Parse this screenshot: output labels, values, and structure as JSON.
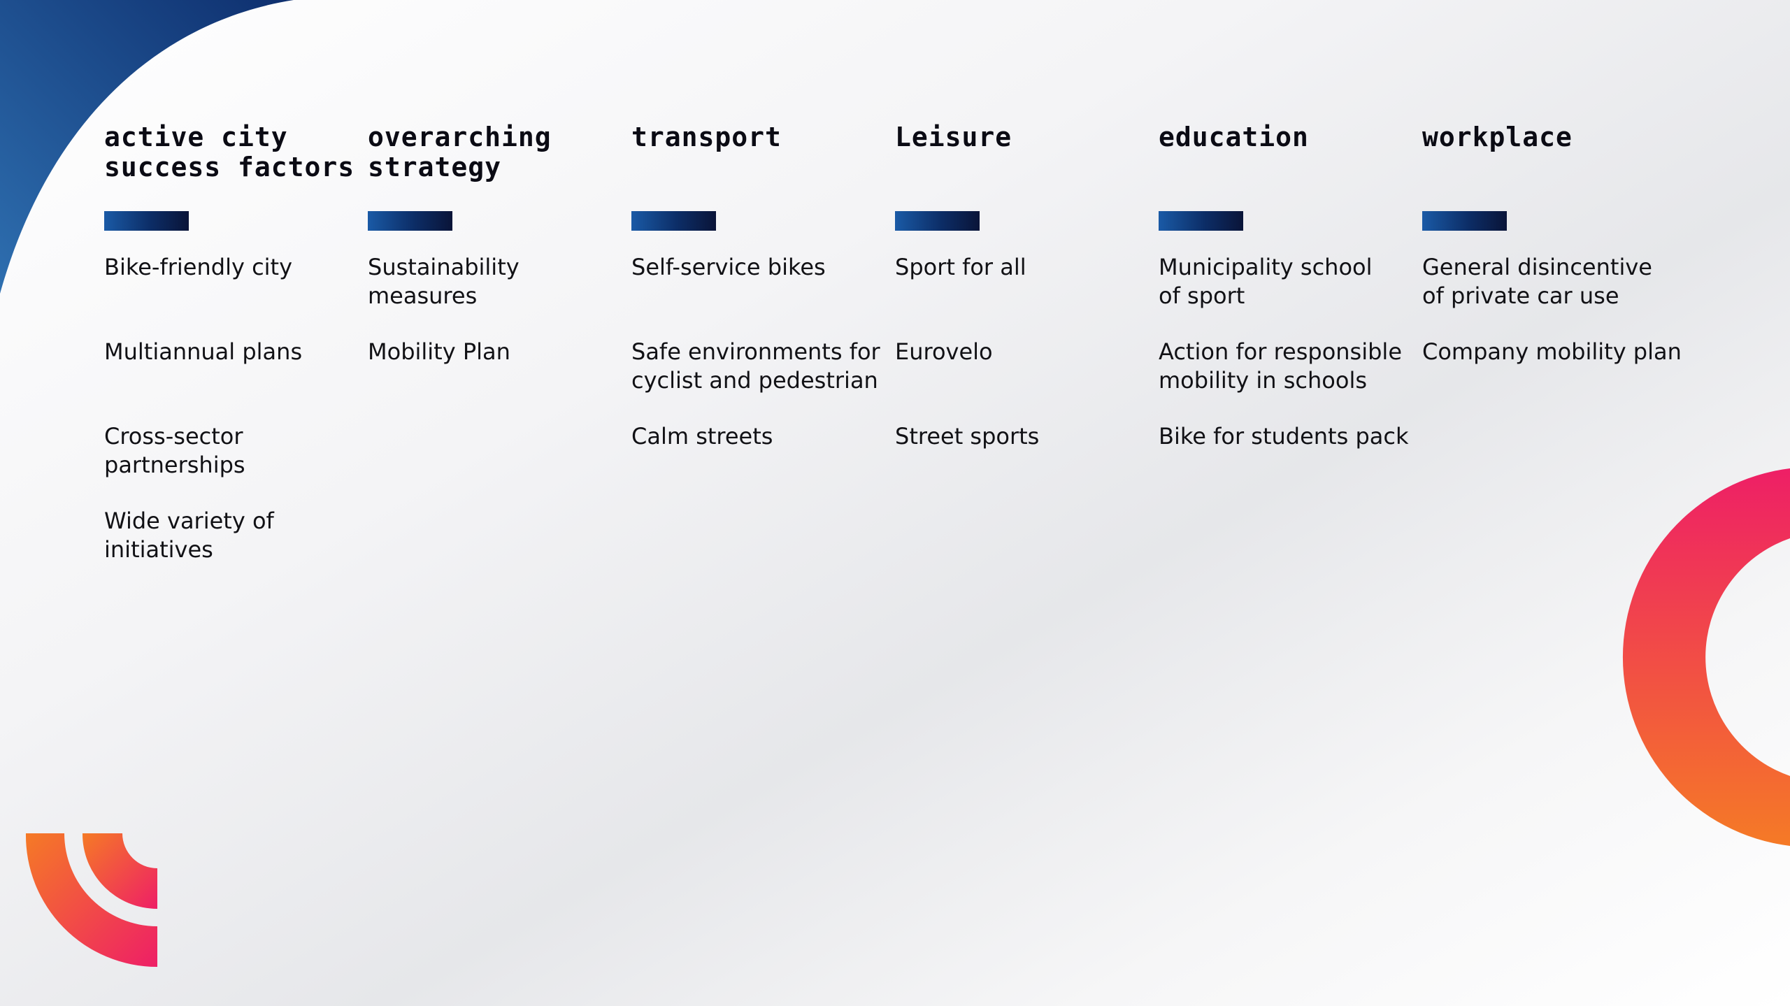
{
  "colors": {
    "heading": "#0b0b14",
    "text": "#111115",
    "bar_start": "#1a5aa6",
    "bar_end": "#0a1438",
    "arc_blue_start": "#2e6fb0",
    "arc_blue_end": "#0e2f6e",
    "arc_warm_start": "#f06a2e",
    "arc_warm_end": "#ee1f66"
  },
  "columns": [
    {
      "title": "active city\nsuccess factors",
      "items": [
        "Bike-friendly city",
        "Multiannual plans",
        "Cross-sector\npartnerships",
        "Wide variety of\ninitiatives"
      ]
    },
    {
      "title": "overarching\nstrategy",
      "items": [
        "Sustainability\nmeasures",
        "Mobility Plan"
      ]
    },
    {
      "title": "transport",
      "items": [
        "Self-service bikes",
        "Safe environments for\ncyclist and pedestrian",
        "Calm streets"
      ]
    },
    {
      "title": "Leisure",
      "items": [
        "Sport for all",
        "Eurovelo",
        "Street sports"
      ]
    },
    {
      "title": "education",
      "items": [
        "Municipality school\nof sport",
        "Action for responsible\nmobility in schools",
        "Bike for students pack"
      ]
    },
    {
      "title": "workplace",
      "items": [
        "General disincentive\nof private car use",
        "Company mobility plan"
      ]
    }
  ]
}
